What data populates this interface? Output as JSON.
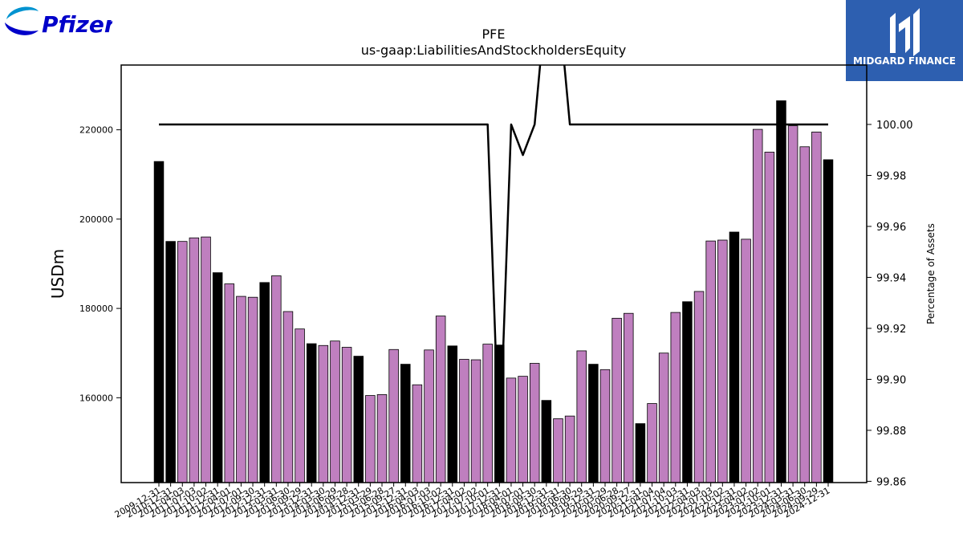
{
  "logos": {
    "left_text": "Pfizer",
    "right_text": "MIDGARD FINANCE",
    "left_color": "#0000c9",
    "right_bg": "#2d5fb0"
  },
  "chart_data": {
    "type": "bar",
    "title": "PFE",
    "subtitle": "us-gaap:LiabilitiesAndStockholdersEquity",
    "ylabel": "USDm",
    "y2label": "Percentage of Assets",
    "ylim": [
      141000,
      234500
    ],
    "y2lim": [
      99.8595,
      100.0233
    ],
    "yticks": [
      160000,
      180000,
      200000,
      220000
    ],
    "y2ticks": [
      99.86,
      99.88,
      99.9,
      99.92,
      99.94,
      99.96,
      99.98,
      100.0
    ],
    "colors": {
      "annual": "#000000",
      "quarterly": "#bf7fbf",
      "line": "#000000"
    },
    "categories": [
      "2009-12-31",
      "2010-12-31",
      "2011-04-03",
      "2011-07-03",
      "2011-10-02",
      "2011-12-31",
      "2012-04-01",
      "2012-07-01",
      "2012-09-30",
      "2012-12-31",
      "2013-03-31",
      "2013-06-30",
      "2013-09-29",
      "2013-12-31",
      "2014-03-30",
      "2014-06-29",
      "2014-09-28",
      "2014-12-31",
      "2015-03-29",
      "2015-06-28",
      "2015-09-27",
      "2015-12-31",
      "2016-04-03",
      "2016-07-03",
      "2016-10-02",
      "2016-12-31",
      "2017-04-02",
      "2017-07-02",
      "2017-10-01",
      "2017-12-31",
      "2018-04-01",
      "2018-07-01",
      "2018-09-30",
      "2018-12-31",
      "2019-03-31",
      "2019-06-30",
      "2019-09-29",
      "2019-12-31",
      "2020-03-29",
      "2020-06-28",
      "2020-09-27",
      "2020-12-31",
      "2021-04-04",
      "2021-07-04",
      "2021-10-03",
      "2021-12-31",
      "2022-04-03",
      "2022-07-03",
      "2022-10-02",
      "2022-12-31",
      "2023-04-02",
      "2023-07-02",
      "2023-10-01",
      "2023-12-31",
      "2024-03-31",
      "2024-06-30",
      "2024-09-29",
      "2024-12-31"
    ],
    "tick_labels": [
      "2009-12-31",
      "2010-12-31",
      "2011-04-03",
      "2011-07-03",
      "2011-10-02",
      "2011-12-31",
      "2012-04-01",
      "2012-07-01",
      "2012-09-30",
      "2012-12-31",
      "2013-03-31",
      "2013-06-30",
      "2013-09-29",
      "2013-12-31",
      "2014-03-30",
      "2014-06-29",
      "2014-09-28",
      "2014-12-31",
      "2015-03-29",
      "2015-06-28",
      "2015-09-27",
      "2015-12-31",
      "2016-04-03",
      "2016-07-03",
      "2016-10-02",
      "2016-12-31",
      "2017-04-02",
      "2017-07-02",
      "2017-10-01",
      "2017-12-31",
      "2018-04-01",
      "2018-07-01",
      "2018-09-30",
      "2018-12-31",
      "2019-03-31",
      "2019-06-30",
      "2019-09-29",
      "2019-12-31",
      "2020-03-29",
      "2020-06-28",
      "2020-09-27",
      "2020-12-31",
      "2021-04-04",
      "2021-07-04",
      "2021-10-03",
      "2021-12-31",
      "2022-04-03",
      "2022-07-03",
      "2022-10-02",
      "2022-12-31",
      "2023-04-02",
      "2023-07-02",
      "2023-10-01",
      "2023-12-31",
      "2024-03-31",
      "2024-06-30",
      "2024-09-29",
      "2024-12-31"
    ],
    "period_types": [
      "annual",
      "annual",
      "quarterly",
      "quarterly",
      "quarterly",
      "annual",
      "quarterly",
      "quarterly",
      "quarterly",
      "annual",
      "quarterly",
      "quarterly",
      "quarterly",
      "annual",
      "quarterly",
      "quarterly",
      "quarterly",
      "annual",
      "quarterly",
      "quarterly",
      "quarterly",
      "annual",
      "quarterly",
      "quarterly",
      "quarterly",
      "annual",
      "quarterly",
      "quarterly",
      "quarterly",
      "annual",
      "quarterly",
      "quarterly",
      "quarterly",
      "annual",
      "quarterly",
      "quarterly",
      "quarterly",
      "annual",
      "quarterly",
      "quarterly",
      "quarterly",
      "annual",
      "quarterly",
      "quarterly",
      "quarterly",
      "annual",
      "quarterly",
      "quarterly",
      "quarterly",
      "annual",
      "quarterly",
      "quarterly",
      "quarterly",
      "annual",
      "quarterly",
      "quarterly",
      "quarterly",
      "annual"
    ],
    "values": [
      212900,
      195000,
      195000,
      195800,
      196000,
      188000,
      185500,
      182700,
      182500,
      185800,
      187300,
      179300,
      175400,
      172100,
      171700,
      172700,
      171300,
      169300,
      160500,
      160700,
      170800,
      167500,
      162900,
      170700,
      178300,
      171600,
      168600,
      168500,
      172000,
      171800,
      164400,
      164800,
      167700,
      159400,
      155300,
      155900,
      170500,
      167500,
      166300,
      177800,
      178900,
      154200,
      158700,
      170000,
      179100,
      181500,
      183800,
      195100,
      195300,
      197100,
      195500,
      220100,
      215000,
      226500,
      220900,
      216200,
      219500,
      213300
    ],
    "line_values": [
      100.0,
      100.0,
      100.0,
      100.0,
      100.0,
      100.0,
      100.0,
      100.0,
      100.0,
      100.0,
      100.0,
      100.0,
      100.0,
      100.0,
      100.0,
      100.0,
      100.0,
      100.0,
      100.0,
      100.0,
      100.0,
      100.0,
      100.0,
      100.0,
      100.0,
      100.0,
      100.0,
      100.0,
      100.0,
      99.87,
      100.0,
      99.988,
      100.0,
      100.05,
      100.05,
      100.0,
      100.0,
      100.0,
      100.0,
      100.0,
      100.0,
      100.0,
      100.0,
      100.0,
      100.0,
      100.0,
      100.0,
      100.0,
      100.0,
      100.0,
      100.0,
      100.0,
      100.0,
      100.0,
      100.0,
      100.0,
      100.0,
      100.0
    ]
  }
}
